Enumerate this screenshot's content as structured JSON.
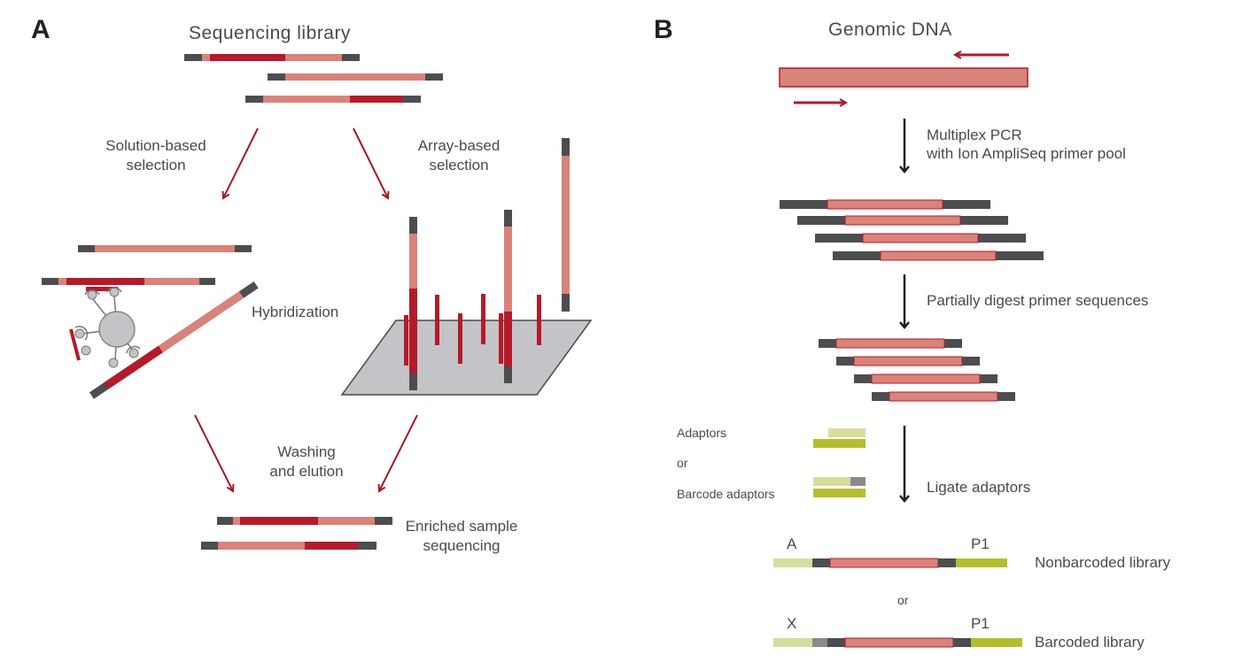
{
  "colors": {
    "dark_red": "#b31b2a",
    "pink": "#d9837a",
    "dark_gray": "#4d4d4f",
    "light_gray": "#c4c4c8",
    "lime_light": "#d8dc9c",
    "lime_dark": "#b5bd2e",
    "arrow_red": "#a31a26",
    "black": "#1e1e1e"
  },
  "panelA": {
    "letter": "A",
    "title": "Sequencing library",
    "solution_label": [
      "Solution-based",
      "selection"
    ],
    "array_label": [
      "Array-based",
      "selection"
    ],
    "hybridization": "Hybridization",
    "washing": [
      "Washing",
      "and elution"
    ],
    "enriched": [
      "Enriched sample",
      "sequencing"
    ]
  },
  "panelB": {
    "letter": "B",
    "title": "Genomic DNA",
    "step1": [
      "Multiplex PCR",
      "with Ion AmpliSeq primer pool"
    ],
    "step2": "Partially digest primer sequences",
    "adaptors": "Adaptors",
    "or_adaptors": "or",
    "barcode_adaptors": "Barcode adaptors",
    "step3": "Ligate adaptors",
    "label_A": "A",
    "label_P1_top": "P1",
    "nonbarcoded": "Nonbarcoded library",
    "or_libraries": "or",
    "label_X": "X",
    "label_P1_bottom": "P1",
    "barcoded": "Barcoded library"
  }
}
